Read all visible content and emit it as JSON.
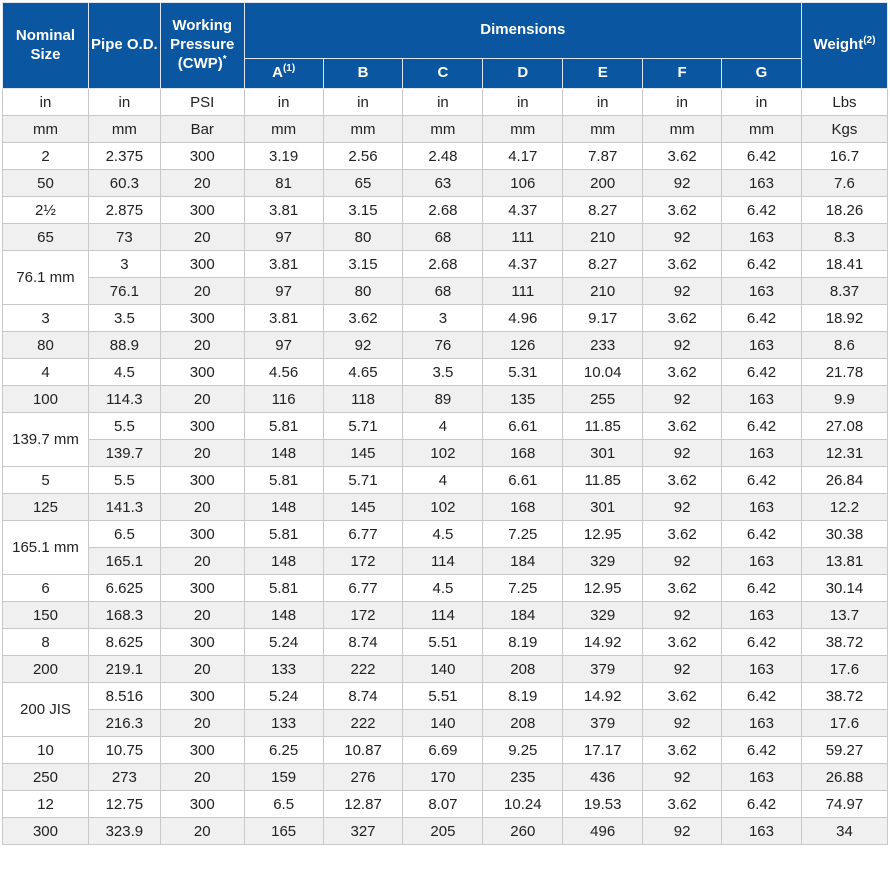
{
  "table": {
    "header": {
      "nominal_size": "Nominal Size",
      "pipe_od": "Pipe O.D.",
      "working_pressure": "Working Pressure",
      "cwp": "(CWP)",
      "cwp_sup": "*",
      "dimensions": "Dimensions",
      "dim_cols": [
        {
          "label": "A",
          "sup": "(1)"
        },
        {
          "label": "B",
          "sup": ""
        },
        {
          "label": "C",
          "sup": ""
        },
        {
          "label": "D",
          "sup": ""
        },
        {
          "label": "E",
          "sup": ""
        },
        {
          "label": "F",
          "sup": ""
        },
        {
          "label": "G",
          "sup": ""
        }
      ],
      "weight_label": "Weight",
      "weight_sup": "(2)"
    },
    "units": {
      "imperial": [
        "in",
        "in",
        "PSI",
        "in",
        "in",
        "in",
        "in",
        "in",
        "in",
        "in",
        "Lbs"
      ],
      "metric": [
        "mm",
        "mm",
        "Bar",
        "mm",
        "mm",
        "mm",
        "mm",
        "mm",
        "mm",
        "mm",
        "Kgs"
      ]
    },
    "rows": [
      {
        "label": "2",
        "rowspan": 1,
        "cells": [
          "2.375",
          "300",
          "3.19",
          "2.56",
          "2.48",
          "4.17",
          "7.87",
          "3.62",
          "6.42",
          "16.7"
        ]
      },
      {
        "label": "50",
        "rowspan": 1,
        "cells": [
          "60.3",
          "20",
          "81",
          "65",
          "63",
          "106",
          "200",
          "92",
          "163",
          "7.6"
        ]
      },
      {
        "label": "2½",
        "rowspan": 1,
        "cells": [
          "2.875",
          "300",
          "3.81",
          "3.15",
          "2.68",
          "4.37",
          "8.27",
          "3.62",
          "6.42",
          "18.26"
        ]
      },
      {
        "label": "65",
        "rowspan": 1,
        "cells": [
          "73",
          "20",
          "97",
          "80",
          "68",
          "111",
          "210",
          "92",
          "163",
          "8.3"
        ]
      },
      {
        "label": "76.1 mm",
        "rowspan": 2,
        "cells": [
          "3",
          "300",
          "3.81",
          "3.15",
          "2.68",
          "4.37",
          "8.27",
          "3.62",
          "6.42",
          "18.41"
        ]
      },
      {
        "label": "",
        "rowspan": 0,
        "cells": [
          "76.1",
          "20",
          "97",
          "80",
          "68",
          "111",
          "210",
          "92",
          "163",
          "8.37"
        ]
      },
      {
        "label": "3",
        "rowspan": 1,
        "cells": [
          "3.5",
          "300",
          "3.81",
          "3.62",
          "3",
          "4.96",
          "9.17",
          "3.62",
          "6.42",
          "18.92"
        ]
      },
      {
        "label": "80",
        "rowspan": 1,
        "cells": [
          "88.9",
          "20",
          "97",
          "92",
          "76",
          "126",
          "233",
          "92",
          "163",
          "8.6"
        ]
      },
      {
        "label": "4",
        "rowspan": 1,
        "cells": [
          "4.5",
          "300",
          "4.56",
          "4.65",
          "3.5",
          "5.31",
          "10.04",
          "3.62",
          "6.42",
          "21.78"
        ]
      },
      {
        "label": "100",
        "rowspan": 1,
        "cells": [
          "114.3",
          "20",
          "116",
          "118",
          "89",
          "135",
          "255",
          "92",
          "163",
          "9.9"
        ]
      },
      {
        "label": "139.7 mm",
        "rowspan": 2,
        "cells": [
          "5.5",
          "300",
          "5.81",
          "5.71",
          "4",
          "6.61",
          "11.85",
          "3.62",
          "6.42",
          "27.08"
        ]
      },
      {
        "label": "",
        "rowspan": 0,
        "cells": [
          "139.7",
          "20",
          "148",
          "145",
          "102",
          "168",
          "301",
          "92",
          "163",
          "12.31"
        ]
      },
      {
        "label": "5",
        "rowspan": 1,
        "cells": [
          "5.5",
          "300",
          "5.81",
          "5.71",
          "4",
          "6.61",
          "11.85",
          "3.62",
          "6.42",
          "26.84"
        ]
      },
      {
        "label": "125",
        "rowspan": 1,
        "cells": [
          "141.3",
          "20",
          "148",
          "145",
          "102",
          "168",
          "301",
          "92",
          "163",
          "12.2"
        ]
      },
      {
        "label": "165.1 mm",
        "rowspan": 2,
        "cells": [
          "6.5",
          "300",
          "5.81",
          "6.77",
          "4.5",
          "7.25",
          "12.95",
          "3.62",
          "6.42",
          "30.38"
        ]
      },
      {
        "label": "",
        "rowspan": 0,
        "cells": [
          "165.1",
          "20",
          "148",
          "172",
          "114",
          "184",
          "329",
          "92",
          "163",
          "13.81"
        ]
      },
      {
        "label": "6",
        "rowspan": 1,
        "cells": [
          "6.625",
          "300",
          "5.81",
          "6.77",
          "4.5",
          "7.25",
          "12.95",
          "3.62",
          "6.42",
          "30.14"
        ]
      },
      {
        "label": "150",
        "rowspan": 1,
        "cells": [
          "168.3",
          "20",
          "148",
          "172",
          "114",
          "184",
          "329",
          "92",
          "163",
          "13.7"
        ]
      },
      {
        "label": "8",
        "rowspan": 1,
        "cells": [
          "8.625",
          "300",
          "5.24",
          "8.74",
          "5.51",
          "8.19",
          "14.92",
          "3.62",
          "6.42",
          "38.72"
        ]
      },
      {
        "label": "200",
        "rowspan": 1,
        "cells": [
          "219.1",
          "20",
          "133",
          "222",
          "140",
          "208",
          "379",
          "92",
          "163",
          "17.6"
        ]
      },
      {
        "label": "200 JIS",
        "rowspan": 2,
        "cells": [
          "8.516",
          "300",
          "5.24",
          "8.74",
          "5.51",
          "8.19",
          "14.92",
          "3.62",
          "6.42",
          "38.72"
        ]
      },
      {
        "label": "",
        "rowspan": 0,
        "cells": [
          "216.3",
          "20",
          "133",
          "222",
          "140",
          "208",
          "379",
          "92",
          "163",
          "17.6"
        ]
      },
      {
        "label": "10",
        "rowspan": 1,
        "cells": [
          "10.75",
          "300",
          "6.25",
          "10.87",
          "6.69",
          "9.25",
          "17.17",
          "3.62",
          "6.42",
          "59.27"
        ]
      },
      {
        "label": "250",
        "rowspan": 1,
        "cells": [
          "273",
          "20",
          "159",
          "276",
          "170",
          "235",
          "436",
          "92",
          "163",
          "26.88"
        ]
      },
      {
        "label": "12",
        "rowspan": 1,
        "cells": [
          "12.75",
          "300",
          "6.5",
          "12.87",
          "8.07",
          "10.24",
          "19.53",
          "3.62",
          "6.42",
          "74.97"
        ]
      },
      {
        "label": "300",
        "rowspan": 1,
        "cells": [
          "323.9",
          "20",
          "165",
          "327",
          "205",
          "260",
          "496",
          "92",
          "163",
          "34"
        ]
      }
    ]
  },
  "colors": {
    "header_bg": "#0a56a0",
    "header_text": "#ffffff",
    "row_alt_bg": "#f0f0f0",
    "border": "#c8c8c8",
    "body_text": "#222222"
  }
}
